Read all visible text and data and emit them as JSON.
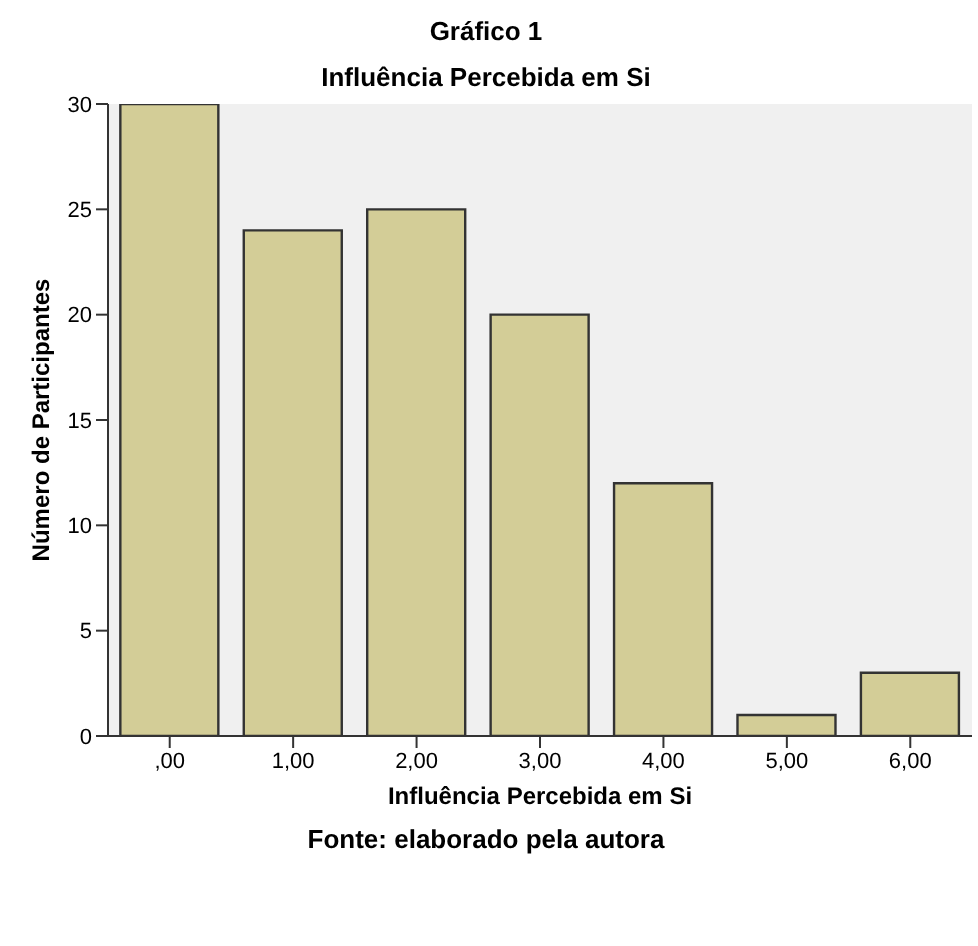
{
  "chart_data": {
    "type": "bar",
    "title": "Gráfico 1",
    "subtitle": "Influência Percebida em Si",
    "xlabel": "Influência Percebida em Si",
    "ylabel": "Número de Participantes",
    "categories": [
      ",00",
      "1,00",
      "2,00",
      "3,00",
      "4,00",
      "5,00",
      "6,00"
    ],
    "values": [
      30,
      24,
      25,
      20,
      12,
      1,
      3
    ],
    "color": "#d3cd97",
    "ylim": [
      0,
      30
    ],
    "yticks": [
      0,
      5,
      10,
      15,
      20,
      25,
      30
    ],
    "annotations": [
      "Fonte: elaborado pela autora"
    ]
  }
}
